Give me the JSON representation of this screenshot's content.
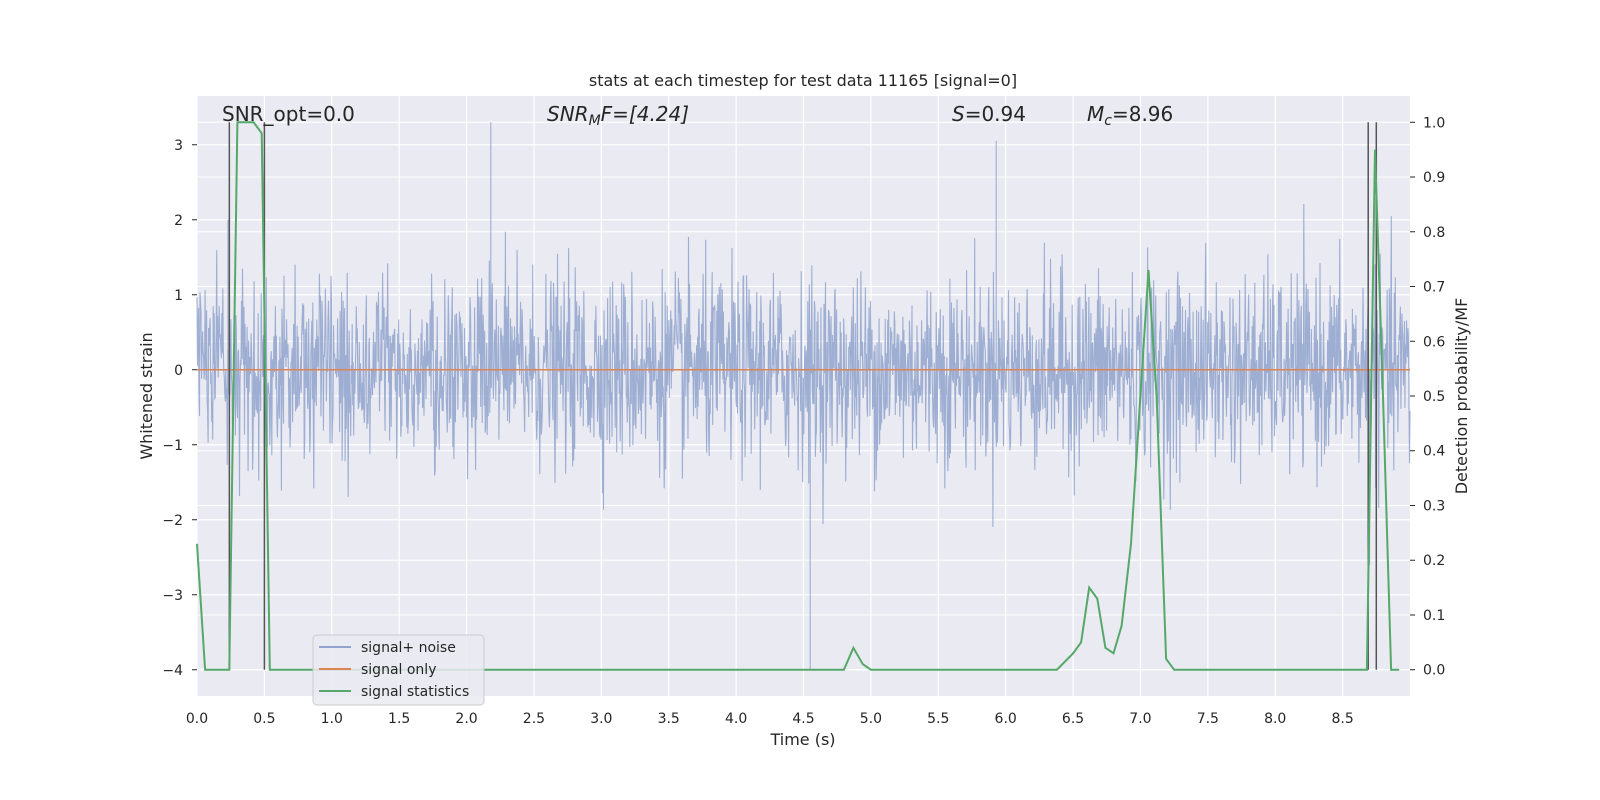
{
  "chart_data": {
    "type": "line",
    "title": "stats at each timestep for test data 11165 [signal=0]",
    "xlabel": "Time (s)",
    "ylabel": "Whitened strain",
    "y2label": "Detection probability/MF",
    "xlim": [
      0.0,
      9.0
    ],
    "ylim": [
      -4.35,
      3.65
    ],
    "y2lim": [
      -0.048,
      1.048
    ],
    "xticks": [
      "0.0",
      "0.5",
      "1.0",
      "1.5",
      "2.0",
      "2.5",
      "3.0",
      "3.5",
      "4.0",
      "4.5",
      "5.0",
      "5.5",
      "6.0",
      "6.5",
      "7.0",
      "7.5",
      "8.0",
      "8.5"
    ],
    "yticks": [
      "3",
      "2",
      "1",
      "0",
      "−1",
      "−2",
      "−3",
      "−4"
    ],
    "y2ticks": [
      "1.0",
      "0.9",
      "0.8",
      "0.7",
      "0.6",
      "0.5",
      "0.4",
      "0.3",
      "0.2",
      "0.1",
      "0.0"
    ],
    "annotations": {
      "snr_opt": "SNR_opt=0.0",
      "snr_mf_pre": "SNR",
      "snr_mf_sub": "M",
      "snr_mf_post": "F=[4.24]",
      "s_pre": "S",
      "s_post": "=0.94",
      "mc_pre": "M",
      "mc_sub": "c",
      "mc_post": "=8.96"
    },
    "legend": {
      "placement": "lower-left",
      "entries": [
        "signal+ noise",
        "signal only",
        "signal statistics"
      ]
    },
    "grid": true,
    "series": [
      {
        "name": "signal+ noise",
        "color": "#8fa3cc",
        "description_type": "noise",
        "y_range": [
          -4.0,
          3.3
        ],
        "spikes": [
          [
            0.23,
            2.0
          ],
          [
            0.5,
            2.2
          ],
          [
            2.18,
            3.3
          ],
          [
            4.55,
            -4.0
          ],
          [
            5.93,
            3.05
          ],
          [
            8.7,
            -2.6
          ]
        ]
      },
      {
        "name": "signal only",
        "color": "#dd8452",
        "x": [
          0.0,
          9.0
        ],
        "y": [
          0.0,
          0.0
        ]
      },
      {
        "name": "signal statistics",
        "color": "#55a868",
        "axis": "right",
        "x": [
          0.0,
          0.06,
          0.12,
          0.18,
          0.24,
          0.3,
          0.36,
          0.42,
          0.48,
          0.54,
          0.6,
          4.5,
          4.74,
          4.8,
          4.87,
          4.94,
          5.0,
          6.3,
          6.38,
          6.5,
          6.56,
          6.62,
          6.68,
          6.74,
          6.8,
          6.86,
          6.93,
          7.0,
          7.06,
          7.12,
          7.19,
          7.25,
          7.31,
          8.5,
          8.68,
          8.74,
          8.8,
          8.86,
          8.92
        ],
        "y": [
          0.23,
          0.0,
          0.0,
          0.0,
          0.0,
          1.0,
          1.0,
          1.0,
          0.98,
          0.0,
          0.0,
          0.0,
          0.0,
          0.0,
          0.04,
          0.01,
          0.0,
          0.0,
          0.0,
          0.03,
          0.05,
          0.15,
          0.13,
          0.04,
          0.03,
          0.08,
          0.23,
          0.5,
          0.73,
          0.5,
          0.02,
          0.0,
          0.0,
          0.0,
          0.0,
          0.95,
          0.5,
          0.0,
          0.0
        ]
      }
    ],
    "vlines": [
      0.24,
      0.5,
      8.69,
      8.75
    ]
  }
}
